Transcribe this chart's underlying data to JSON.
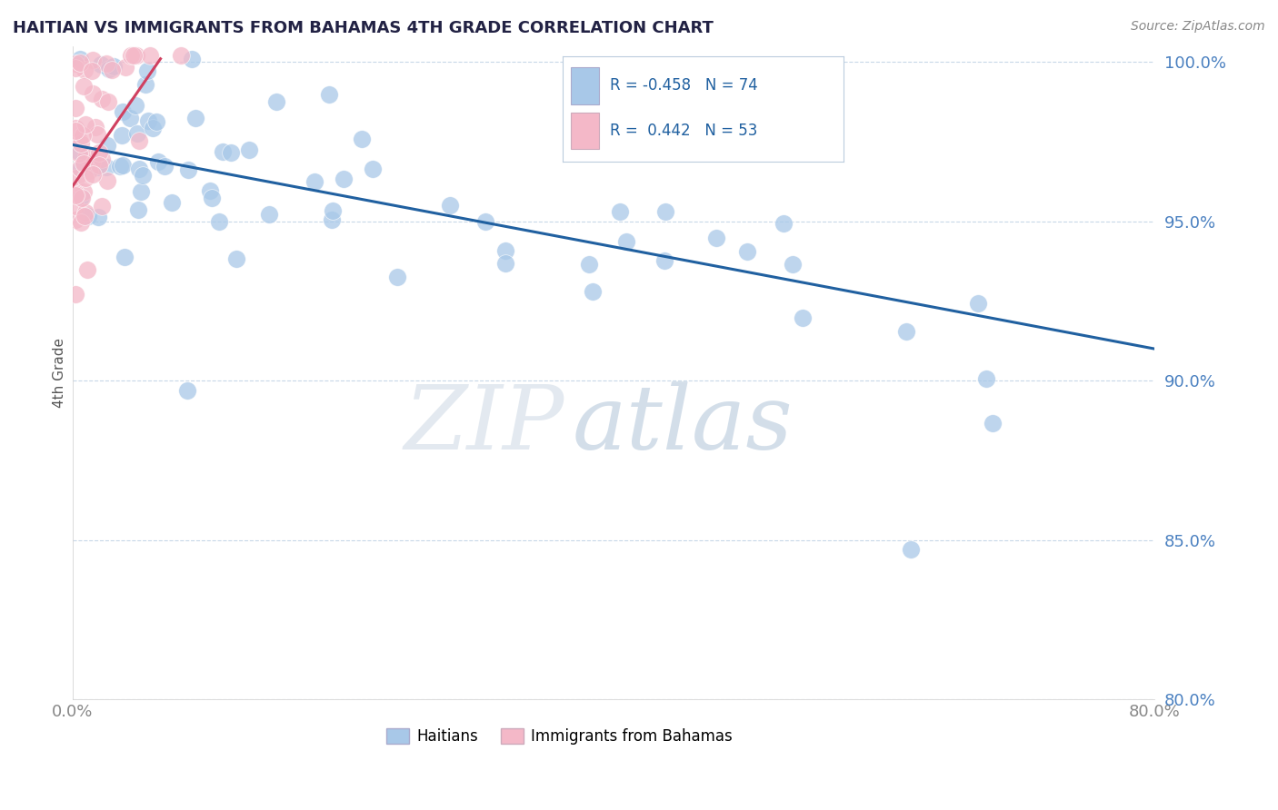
{
  "title": "HAITIAN VS IMMIGRANTS FROM BAHAMAS 4TH GRADE CORRELATION CHART",
  "source": "Source: ZipAtlas.com",
  "ylabel": "4th Grade",
  "x_min": 0.0,
  "x_max": 0.8,
  "y_min": 0.8,
  "y_max": 1.005,
  "blue_R": -0.458,
  "blue_N": 74,
  "pink_R": 0.442,
  "pink_N": 53,
  "blue_color": "#a8c8e8",
  "pink_color": "#f4b8c8",
  "blue_line_color": "#2060a0",
  "pink_line_color": "#d04060",
  "legend_label_blue": "Haitians",
  "legend_label_pink": "Immigrants from Bahamas",
  "background_color": "#ffffff",
  "grid_color": "#c8d8e8",
  "title_color": "#222244",
  "source_color": "#888888",
  "ytick_color": "#4a80c0",
  "xtick_color": "#888888",
  "blue_line_x0": 0.0,
  "blue_line_y0": 0.974,
  "blue_line_x1": 0.8,
  "blue_line_y1": 0.91,
  "pink_line_x0": 0.0,
  "pink_line_y0": 0.961,
  "pink_line_x1": 0.065,
  "pink_line_y1": 1.001
}
